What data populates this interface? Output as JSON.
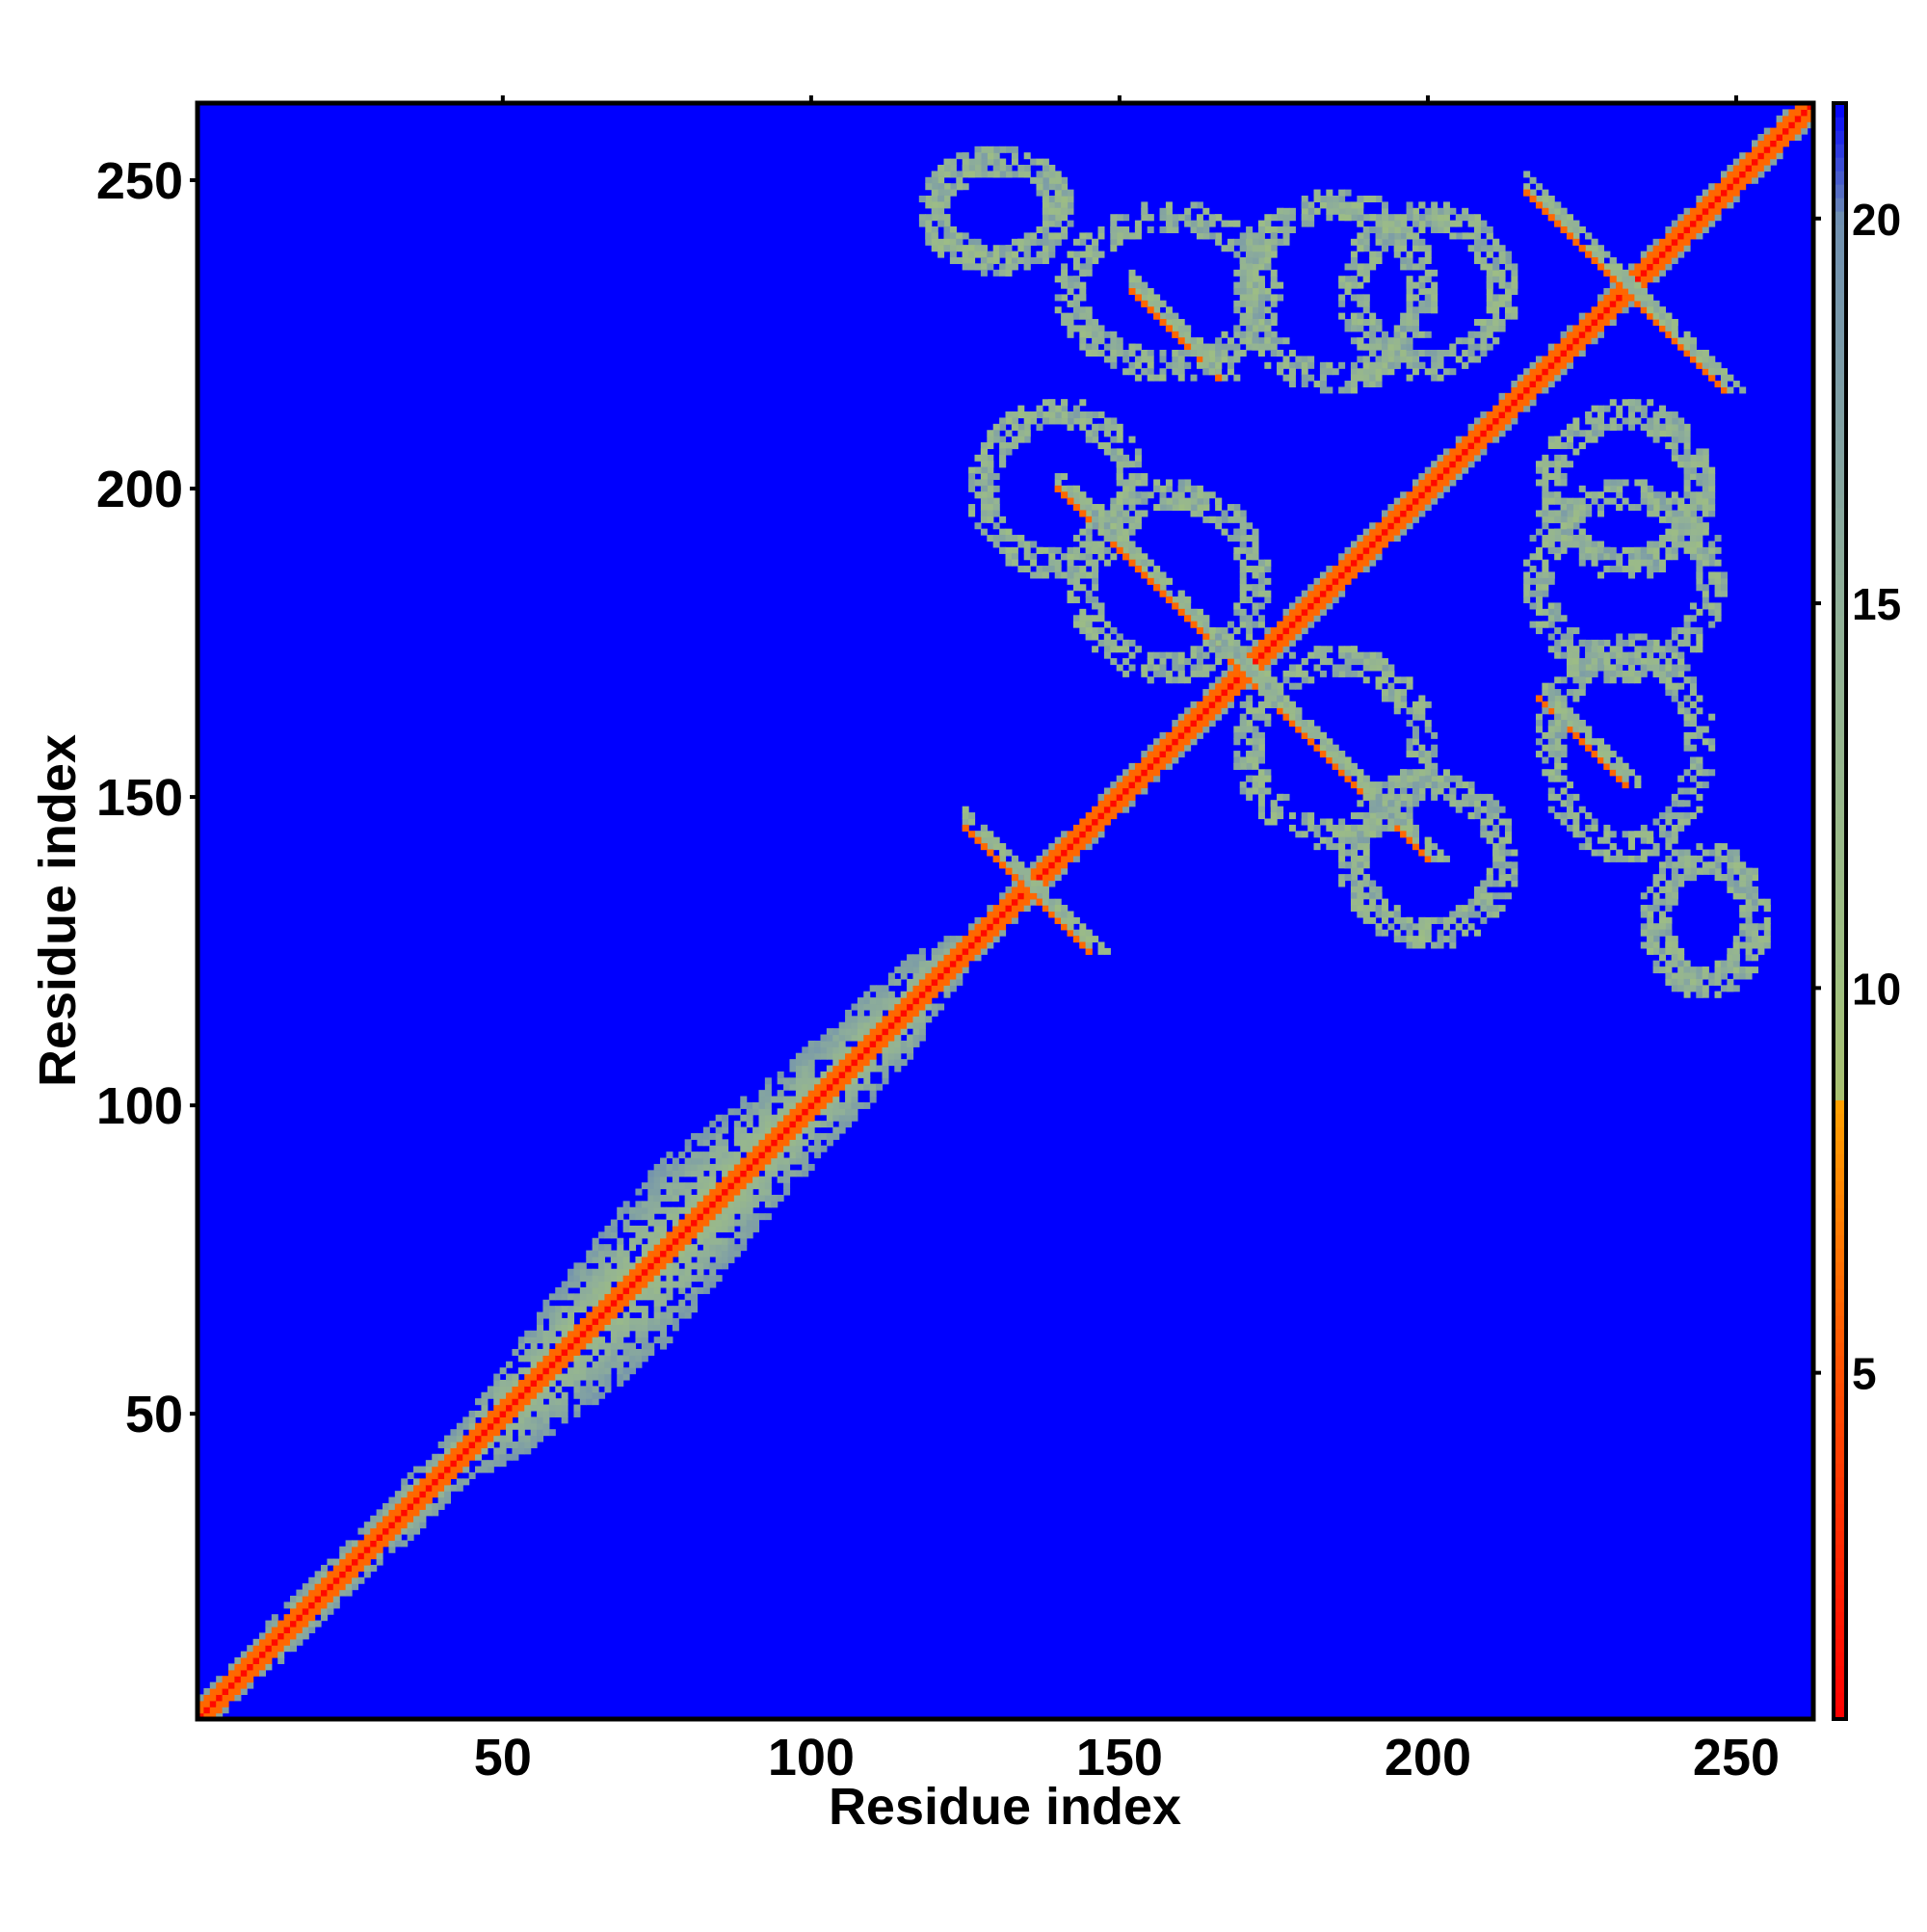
{
  "chart_data": {
    "type": "heatmap",
    "title": "",
    "xlabel": "Residue index",
    "ylabel": "Residue index",
    "x_range": [
      1,
      262
    ],
    "y_range": [
      1,
      262
    ],
    "x_ticks": [
      50,
      100,
      150,
      200,
      250
    ],
    "y_ticks": [
      50,
      100,
      150,
      200,
      250
    ],
    "colorbar": {
      "ticks": [
        5,
        10,
        15,
        20
      ],
      "range": [
        0.5,
        21.5
      ],
      "stops": [
        {
          "value": 0.5,
          "color": "#ff0000"
        },
        {
          "value": 5,
          "color": "#ff5000"
        },
        {
          "value": 8.5,
          "color": "#ffa000"
        },
        {
          "value": 8.6,
          "color": "#a8c070"
        },
        {
          "value": 10,
          "color": "#a0c080"
        },
        {
          "value": 15,
          "color": "#90b098"
        },
        {
          "value": 20,
          "color": "#7090b0"
        },
        {
          "value": 21.5,
          "color": "#0000ff"
        }
      ]
    },
    "background_value": 21.5,
    "structure": {
      "diagonal_value": 1,
      "near_diagonal_value": 6,
      "band_halfwidth": [
        {
          "residue": 1,
          "width": 3
        },
        {
          "residue": 45,
          "width": 5
        },
        {
          "residue": 55,
          "width": 10
        },
        {
          "residue": 75,
          "width": 15
        },
        {
          "residue": 95,
          "width": 10
        },
        {
          "residue": 115,
          "width": 8
        },
        {
          "residue": 125,
          "width": 3
        },
        {
          "residue": 262,
          "width": 3
        }
      ],
      "antiparallel_segments": [
        {
          "from": [
            125,
            145
          ],
          "to": [
            145,
            125
          ]
        },
        {
          "from": [
            140,
            200
          ],
          "to": [
            200,
            140
          ]
        },
        {
          "from": [
            152,
            232
          ],
          "to": [
            166,
            218
          ]
        },
        {
          "from": [
            216,
            248
          ],
          "to": [
            248,
            216
          ]
        },
        {
          "from": [
            218,
            166
          ],
          "to": [
            232,
            152
          ]
        }
      ],
      "contact_rings": [
        {
          "center": [
            158,
            185
          ],
          "rx": 14,
          "ry": 14
        },
        {
          "center": [
            185,
            158
          ],
          "rx": 14,
          "ry": 14
        },
        {
          "center": [
            158,
            232
          ],
          "rx": 16,
          "ry": 12
        },
        {
          "center": [
            232,
            158
          ],
          "rx": 12,
          "ry": 16
        },
        {
          "center": [
            200,
            232
          ],
          "rx": 12,
          "ry": 12
        },
        {
          "center": [
            232,
            200
          ],
          "rx": 12,
          "ry": 12
        },
        {
          "center": [
            140,
            200
          ],
          "rx": 12,
          "ry": 12
        },
        {
          "center": [
            200,
            140
          ],
          "rx": 12,
          "ry": 12
        },
        {
          "center": [
            185,
            232
          ],
          "rx": 14,
          "ry": 14
        },
        {
          "center": [
            232,
            185
          ],
          "rx": 14,
          "ry": 14
        },
        {
          "center": [
            245,
            130
          ],
          "rx": 8,
          "ry": 10
        },
        {
          "center": [
            130,
            245
          ],
          "rx": 10,
          "ry": 8
        }
      ]
    }
  }
}
